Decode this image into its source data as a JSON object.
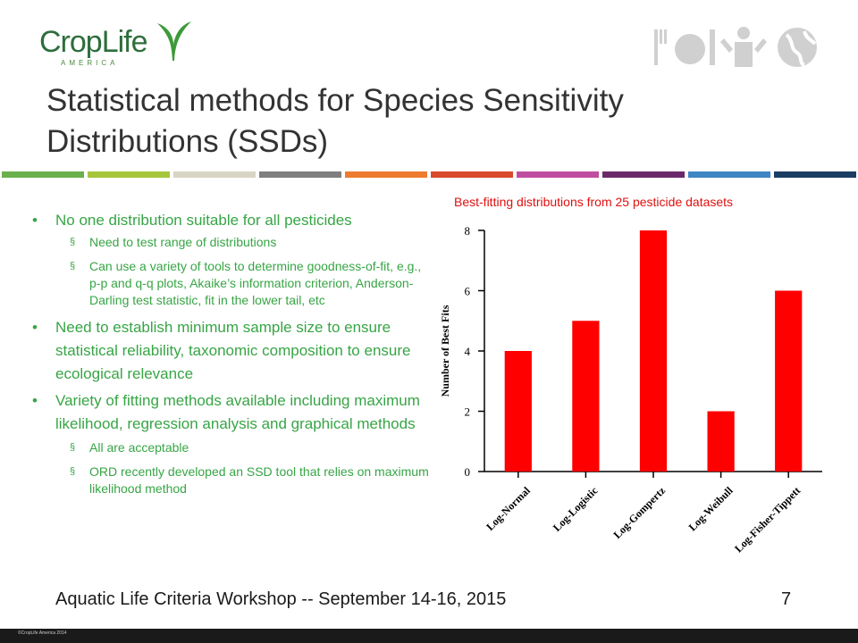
{
  "logo": {
    "text": "CropLife",
    "sub": "AMERICA",
    "reg": "®"
  },
  "title": {
    "line1": "Statistical methods for Species Sensitivity",
    "line2": "Distributions (SSDs)"
  },
  "strip_colors": [
    "#6ab04c",
    "#a5c63b",
    "#d8d5c4",
    "#7f7f7f",
    "#ee7b30",
    "#d84a2a",
    "#c04ea0",
    "#6a2a6a",
    "#3f86c4",
    "#1c3d63"
  ],
  "bullets": {
    "b1": "No one distribution suitable for all pesticides",
    "b1_sub1": "Need to test range of distributions",
    "b1_sub2": "Can use a variety of tools to determine goodness-of-fit, e.g., p-p and q-q plots, Akaike’s information criterion, Anderson-Darling test statistic, fit in the lower tail, etc",
    "b2": "Need to establish minimum sample size to ensure statistical reliability, taxonomic composition to ensure ecological relevance",
    "b3": "Variety of fitting methods available including maximum likelihood, regression analysis and graphical methods",
    "b3_sub1": "All are acceptable",
    "b3_sub2": "ORD recently developed an SSD tool that relies on maximum likelihood method"
  },
  "chart_data": {
    "type": "bar",
    "title": "Best-fitting distributions from 25 pesticide datasets",
    "categories": [
      "Log-Normal",
      "Log-Logistic",
      "Log-Gompertz",
      "Log-Weibull",
      "Log-Fisher-Tippett"
    ],
    "values": [
      4,
      5,
      8,
      2,
      6
    ],
    "ylabel": "Number of Best Fits",
    "xlabel": "",
    "ylim": [
      0,
      8
    ],
    "yticks": [
      0,
      2,
      4,
      6,
      8
    ],
    "bar_color": "#ff0000",
    "grid": false
  },
  "footer": {
    "text": "Aquatic Life Criteria Workshop -- September 14-16, 2015",
    "page": "7"
  },
  "copyright": "©CropLife America 2014"
}
